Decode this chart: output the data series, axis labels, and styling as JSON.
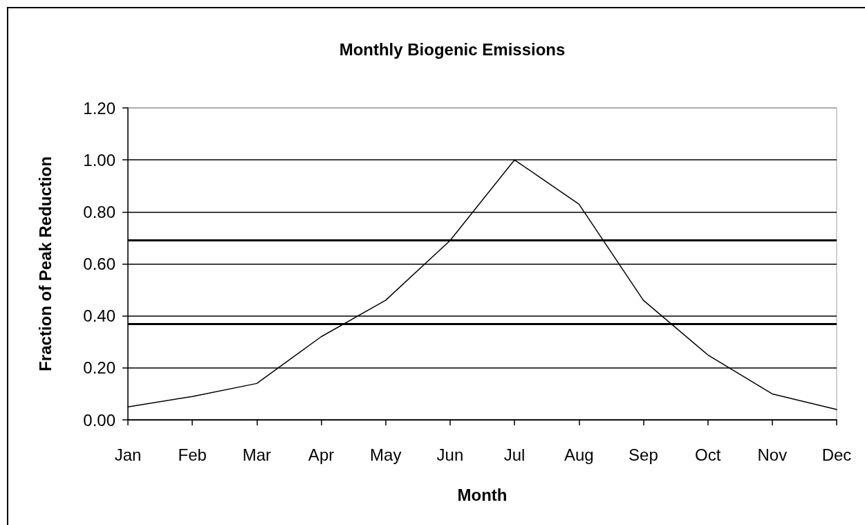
{
  "chart_data": {
    "type": "line",
    "title": "Monthly Biogenic Emissions",
    "xlabel": "Month",
    "ylabel": "Fraction of Peak Reduction",
    "categories": [
      "Jan",
      "Feb",
      "Mar",
      "Apr",
      "May",
      "Jun",
      "Jul",
      "Aug",
      "Sep",
      "Oct",
      "Nov",
      "Dec"
    ],
    "series": [
      {
        "color": "#000000",
        "values": [
          0.05,
          0.09,
          0.14,
          0.32,
          0.46,
          0.69,
          1.0,
          0.83,
          0.46,
          0.25,
          0.1,
          0.04
        ]
      }
    ],
    "ylim": [
      0,
      1.2
    ],
    "yticks": [
      {
        "value": 0,
        "label": "0.00"
      },
      {
        "value": 0.2,
        "label": "0.20"
      },
      {
        "value": 0.4,
        "label": "0.40"
      },
      {
        "value": 0.6,
        "label": "0.60"
      },
      {
        "value": 0.8,
        "label": "0.80"
      },
      {
        "value": 1.0,
        "label": "1.00"
      },
      {
        "value": 1.2,
        "label": "1.20"
      }
    ],
    "grid": "y",
    "marker": "none",
    "line_style": "solid",
    "ref_lines": [
      {
        "axis": "y",
        "value": 0.69,
        "color": "#000000"
      },
      {
        "axis": "y",
        "value": 0.37,
        "color": "#000000"
      }
    ]
  }
}
